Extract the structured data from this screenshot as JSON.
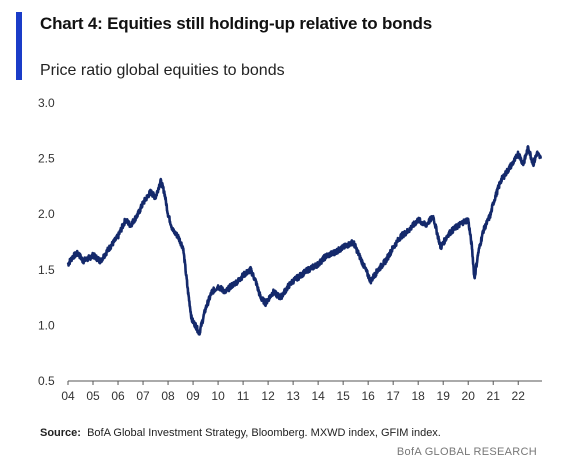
{
  "header": {
    "title": "Chart 4: Equities still holding-up relative to bonds",
    "subtitle": "Price ratio global equities to bonds"
  },
  "footer": {
    "source_label": "Source:",
    "source_text": "BofA Global Investment Strategy, Bloomberg. MXWD index, GFIM index.",
    "brand": "BofA GLOBAL RESEARCH"
  },
  "colors": {
    "line": "#14296b",
    "accent": "#1a3cc8",
    "axis": "#555555"
  },
  "chart_data": {
    "type": "line",
    "title": "Price ratio global equities to bonds",
    "xlabel": "",
    "ylabel": "",
    "xlim": [
      2004.0,
      2022.95
    ],
    "ylim": [
      0.5,
      3.0
    ],
    "yticks": [
      "0.5",
      "1.0",
      "1.5",
      "2.0",
      "2.5",
      "3.0"
    ],
    "xticks": [
      "04",
      "05",
      "06",
      "07",
      "08",
      "09",
      "10",
      "11",
      "12",
      "13",
      "14",
      "15",
      "16",
      "17",
      "18",
      "19",
      "20",
      "21",
      "22"
    ],
    "grid": false,
    "series": [
      {
        "name": "",
        "x": [
          2004.0,
          2004.2,
          2004.4,
          2004.6,
          2004.8,
          2005.0,
          2005.3,
          2005.6,
          2006.0,
          2006.3,
          2006.5,
          2006.8,
          2007.0,
          2007.3,
          2007.5,
          2007.7,
          2007.85,
          2008.0,
          2008.2,
          2008.4,
          2008.6,
          2008.8,
          2008.95,
          2009.1,
          2009.25,
          2009.5,
          2009.75,
          2010.0,
          2010.3,
          2010.5,
          2010.8,
          2011.0,
          2011.3,
          2011.5,
          2011.7,
          2011.9,
          2012.2,
          2012.5,
          2012.8,
          2013.0,
          2013.3,
          2013.6,
          2014.0,
          2014.3,
          2014.6,
          2015.0,
          2015.4,
          2015.6,
          2015.9,
          2016.1,
          2016.4,
          2016.7,
          2017.0,
          2017.3,
          2017.6,
          2018.0,
          2018.3,
          2018.6,
          2018.9,
          2019.2,
          2019.5,
          2019.8,
          2020.0,
          2020.15,
          2020.25,
          2020.4,
          2020.6,
          2020.9,
          2021.0,
          2021.3,
          2021.6,
          2021.9,
          2022.0,
          2022.2,
          2022.4,
          2022.6,
          2022.75,
          2022.9
        ],
        "y": [
          1.55,
          1.62,
          1.65,
          1.58,
          1.6,
          1.63,
          1.58,
          1.68,
          1.8,
          1.95,
          1.9,
          2.0,
          2.1,
          2.2,
          2.15,
          2.3,
          2.2,
          2.0,
          1.85,
          1.8,
          1.7,
          1.3,
          1.05,
          1.0,
          0.93,
          1.15,
          1.3,
          1.35,
          1.3,
          1.35,
          1.4,
          1.45,
          1.5,
          1.4,
          1.25,
          1.2,
          1.3,
          1.25,
          1.35,
          1.4,
          1.45,
          1.5,
          1.55,
          1.62,
          1.65,
          1.7,
          1.75,
          1.65,
          1.5,
          1.4,
          1.5,
          1.58,
          1.7,
          1.8,
          1.85,
          1.95,
          1.9,
          1.98,
          1.7,
          1.82,
          1.88,
          1.93,
          1.95,
          1.7,
          1.42,
          1.65,
          1.85,
          2.0,
          2.1,
          2.3,
          2.4,
          2.5,
          2.55,
          2.45,
          2.6,
          2.45,
          2.55,
          2.5
        ]
      }
    ]
  }
}
